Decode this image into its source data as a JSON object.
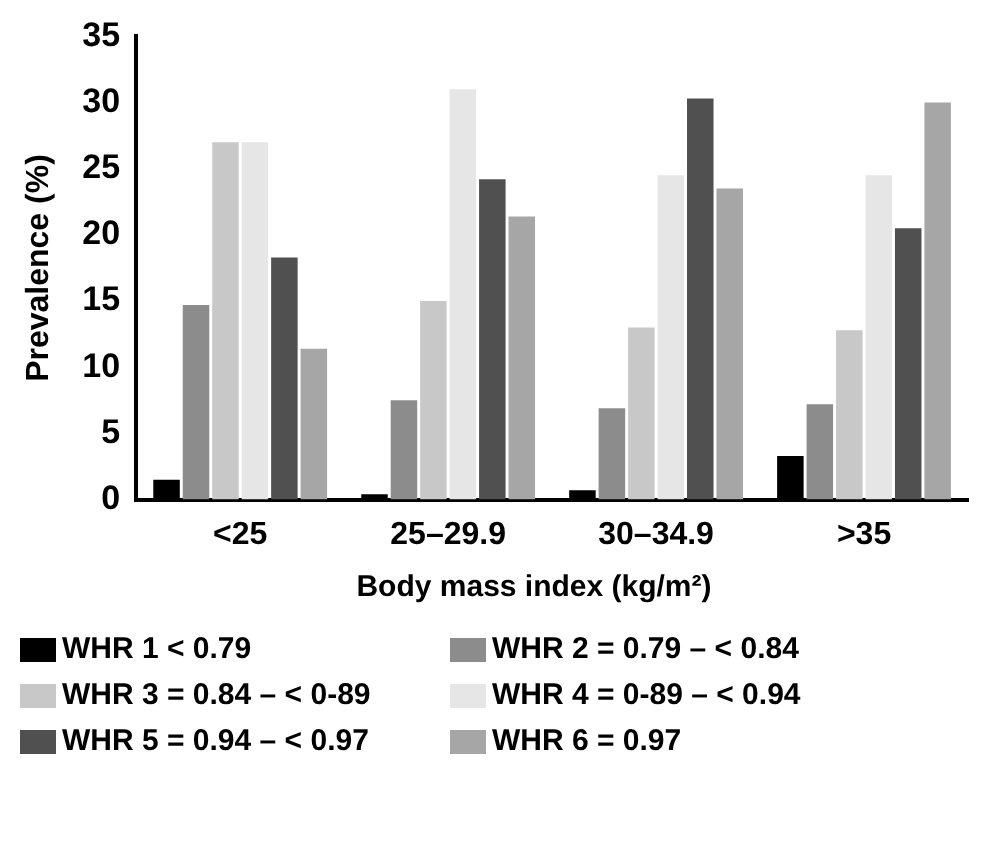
{
  "chart_data": {
    "type": "bar",
    "xlabel": "Body mass index (kg/m²)",
    "ylabel": "Prevalence (%)",
    "categories": [
      "<25",
      "25–29.9",
      "30–34.9",
      ">35"
    ],
    "series": [
      {
        "name": "WHR 1 < 0.79",
        "color": "#000000",
        "values": [
          1.5,
          0.4,
          0.7,
          3.3
        ]
      },
      {
        "name": "WHR 2 = 0.79 – < 0.84",
        "color": "#8c8c8c",
        "values": [
          14.7,
          7.5,
          6.9,
          7.2
        ]
      },
      {
        "name": "WHR 3 = 0.84 – < 0-89",
        "color": "#c8c8c8",
        "values": [
          27,
          15,
          13,
          12.8
        ]
      },
      {
        "name": "WHR 4 = 0-89 – < 0.94",
        "color": "#e6e6e6",
        "values": [
          27,
          31,
          24.5,
          24.5
        ]
      },
      {
        "name": "WHR 5 = 0.94 – < 0.97",
        "color": "#505050",
        "values": [
          18.3,
          24.2,
          30.3,
          20.5
        ]
      },
      {
        "name": "WHR 6 = 0.97",
        "color": "#a6a6a6",
        "values": [
          11.4,
          21.4,
          23.5,
          30
        ]
      }
    ],
    "ylim": [
      0,
      35
    ],
    "yticks": [
      0,
      5,
      10,
      15,
      20,
      25,
      30,
      35
    ],
    "grid": false,
    "legend": "bottom"
  }
}
